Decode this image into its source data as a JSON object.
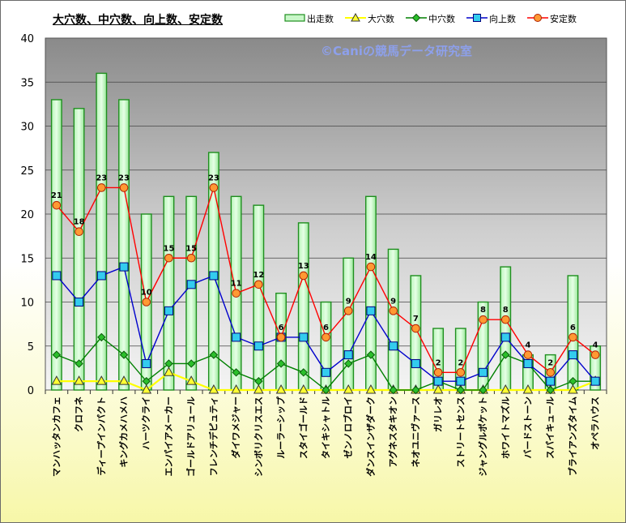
{
  "chart_data": {
    "type": "bar+line",
    "title": "大穴数、中穴数、向上数、安定数",
    "watermark": "©Caniの競馬データ研究室",
    "ylim": [
      0,
      40
    ],
    "yticks": [
      0,
      5,
      10,
      15,
      20,
      25,
      30,
      35,
      40
    ],
    "grid": true,
    "legend_position": "top-right",
    "categories": [
      "マンハッタンカフェ",
      "クロフネ",
      "ディープインパクト",
      "キングカメハメハ",
      "ハーツクライ",
      "エンパイアメーカー",
      "ゴールドアリュール",
      "フレンチデピュティ",
      "ダイワメジャー",
      "シンボリクリスエス",
      "ルーラーシップ",
      "スタイゴールド",
      "タイキシャトル",
      "ゼンノロブロイ",
      "ダンスインザダーク",
      "アグネスタキオン",
      "ネオユニヴァース",
      "ガリレオ",
      "ストリートセンス",
      "ジャングルポケット",
      "ホワイトマズル",
      "バードストーン",
      "スパイキュール",
      "ブライアンズタイム",
      "オペラハウス"
    ],
    "series": [
      {
        "name": "出走数",
        "kind": "bar",
        "color": "#66dd66",
        "values": [
          33,
          32,
          36,
          33,
          20,
          22,
          22,
          27,
          22,
          21,
          11,
          19,
          10,
          15,
          22,
          16,
          13,
          7,
          7,
          10,
          14,
          4,
          4,
          13,
          5
        ]
      },
      {
        "name": "大穴数",
        "kind": "line",
        "color": "#ffff00",
        "values": [
          1,
          1,
          1,
          1,
          0,
          2,
          1,
          0,
          0,
          0,
          0,
          0,
          0,
          0,
          0,
          0,
          0,
          0,
          0,
          0,
          0,
          0,
          0,
          0,
          1
        ]
      },
      {
        "name": "中穴数",
        "kind": "line",
        "color": "#008000",
        "values": [
          4,
          3,
          6,
          4,
          1,
          3,
          3,
          4,
          2,
          1,
          3,
          2,
          0,
          3,
          4,
          0,
          0,
          1,
          0,
          0,
          4,
          3,
          0,
          1,
          1
        ]
      },
      {
        "name": "向上数",
        "kind": "line",
        "color": "#0000cc",
        "values": [
          13,
          10,
          13,
          14,
          3,
          9,
          12,
          13,
          6,
          5,
          6,
          6,
          2,
          4,
          9,
          5,
          3,
          1,
          1,
          2,
          6,
          3,
          1,
          4,
          1
        ]
      },
      {
        "name": "安定数",
        "kind": "line",
        "color": "#ff0000",
        "values": [
          21,
          18,
          23,
          23,
          10,
          15,
          15,
          23,
          11,
          12,
          6,
          13,
          6,
          9,
          14,
          9,
          7,
          2,
          2,
          8,
          8,
          4,
          2,
          6,
          4
        ]
      }
    ],
    "data_labels": [
      "21",
      "18",
      "23",
      "23",
      "10",
      "15",
      "15",
      "23",
      "11",
      "12",
      "6",
      "13",
      "6",
      "9",
      "14",
      "9",
      "7",
      "2",
      "2",
      "8",
      "8",
      "4",
      "2",
      "6",
      "4"
    ]
  }
}
